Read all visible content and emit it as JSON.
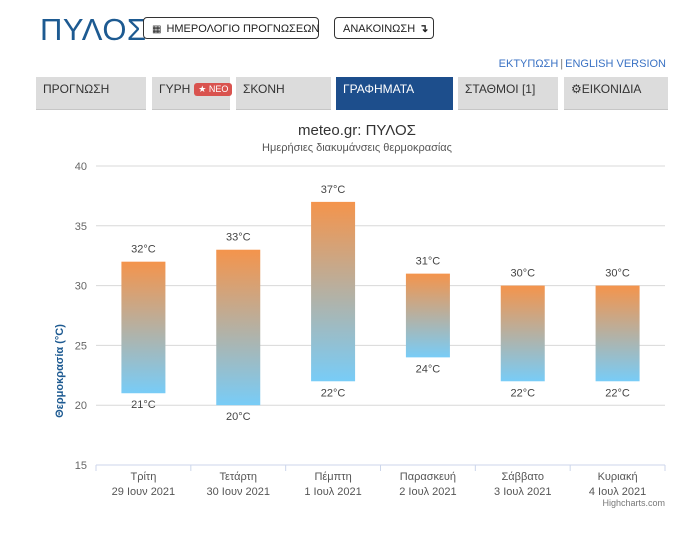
{
  "header": {
    "city": "ΠΥΛΟΣ",
    "calendar_button": "ΗΜΕΡΟΛΟΓΙΟ ΠΡΟΓΝΩΣΕΩΝ",
    "announcement_button": "ΑΝΑΚΟΙΝΩΣΗ",
    "print_link": "ΕΚΤΥΠΩΣΗ",
    "link_separator": "|",
    "english_link": "ENGLISH VERSION"
  },
  "tabs": [
    {
      "label": "ΠΡΟΓΝΩΣΗ"
    },
    {
      "label": "ΓΥΡΗ",
      "badge": "ΝΕΟ"
    },
    {
      "label": "ΣΚΟΝΗ"
    },
    {
      "label": "ΓΡΑΦΗΜΑΤΑ",
      "active": true
    },
    {
      "label": "ΣΤΑΘΜΟΙ [1]"
    },
    {
      "label": "ΕΙΚΟΝΙΔΙΑ",
      "icon": "gear-icon"
    }
  ],
  "colors": {
    "accent": "#1d4e8c",
    "bar_top": "#f4944c",
    "bar_bottom": "#78ccf7",
    "badge": "#d9534f"
  },
  "chart_data": {
    "type": "bar",
    "title": "meteo.gr: ΠΥΛΟΣ",
    "subtitle": "Ημερήσιες διακυμάνσεις θερμοκρασίας",
    "ylabel": "Θερμοκρασία (°C)",
    "xlabel": "",
    "ylim": [
      15,
      40
    ],
    "yticks": [
      15,
      20,
      25,
      30,
      35,
      40
    ],
    "grid": true,
    "unit": "°C",
    "categories": [
      [
        "Τρίτη",
        "29 Ιουν 2021"
      ],
      [
        "Τετάρτη",
        "30 Ιουν 2021"
      ],
      [
        "Πέμπτη",
        "1 Ιουλ 2021"
      ],
      [
        "Παρασκευή",
        "2 Ιουλ 2021"
      ],
      [
        "Σάββατο",
        "3 Ιουλ 2021"
      ],
      [
        "Κυριακή",
        "4 Ιουλ 2021"
      ]
    ],
    "low": [
      21,
      20,
      22,
      24,
      22,
      22
    ],
    "high": [
      32,
      33,
      37,
      31,
      30,
      30
    ],
    "credits": "Highcharts.com"
  }
}
